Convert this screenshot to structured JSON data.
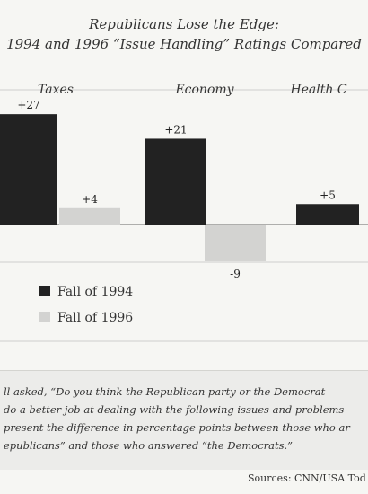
{
  "chart_data": {
    "type": "bar",
    "title": "Republicans Lose the Edge:",
    "subtitle": "1994 and 1996 “Issue Handling” Ratings Compared",
    "categories": [
      "Taxes",
      "Economy",
      "Health C"
    ],
    "series": [
      {
        "name": "Fall of 1994",
        "values": [
          27,
          21,
          5
        ],
        "labels": [
          "+27",
          "+21",
          "+5"
        ],
        "color": "#222222"
      },
      {
        "name": "Fall of 1996",
        "values": [
          4,
          -9,
          null
        ],
        "labels": [
          "+4",
          "-9",
          ""
        ],
        "color": "#d3d3d1"
      }
    ],
    "ylim": [
      -20,
      30
    ],
    "grid": true,
    "legend": "bottom-left"
  },
  "note": {
    "lines": [
      "ll asked, “Do you think the Republican party or the Democrat",
      "do a better job at dealing with the following issues and problems",
      "present the difference in percentage points between those who ar",
      "epublicans” and those who answered “the Democrats.”"
    ]
  },
  "source": "Sources: CNN/USA Tod"
}
